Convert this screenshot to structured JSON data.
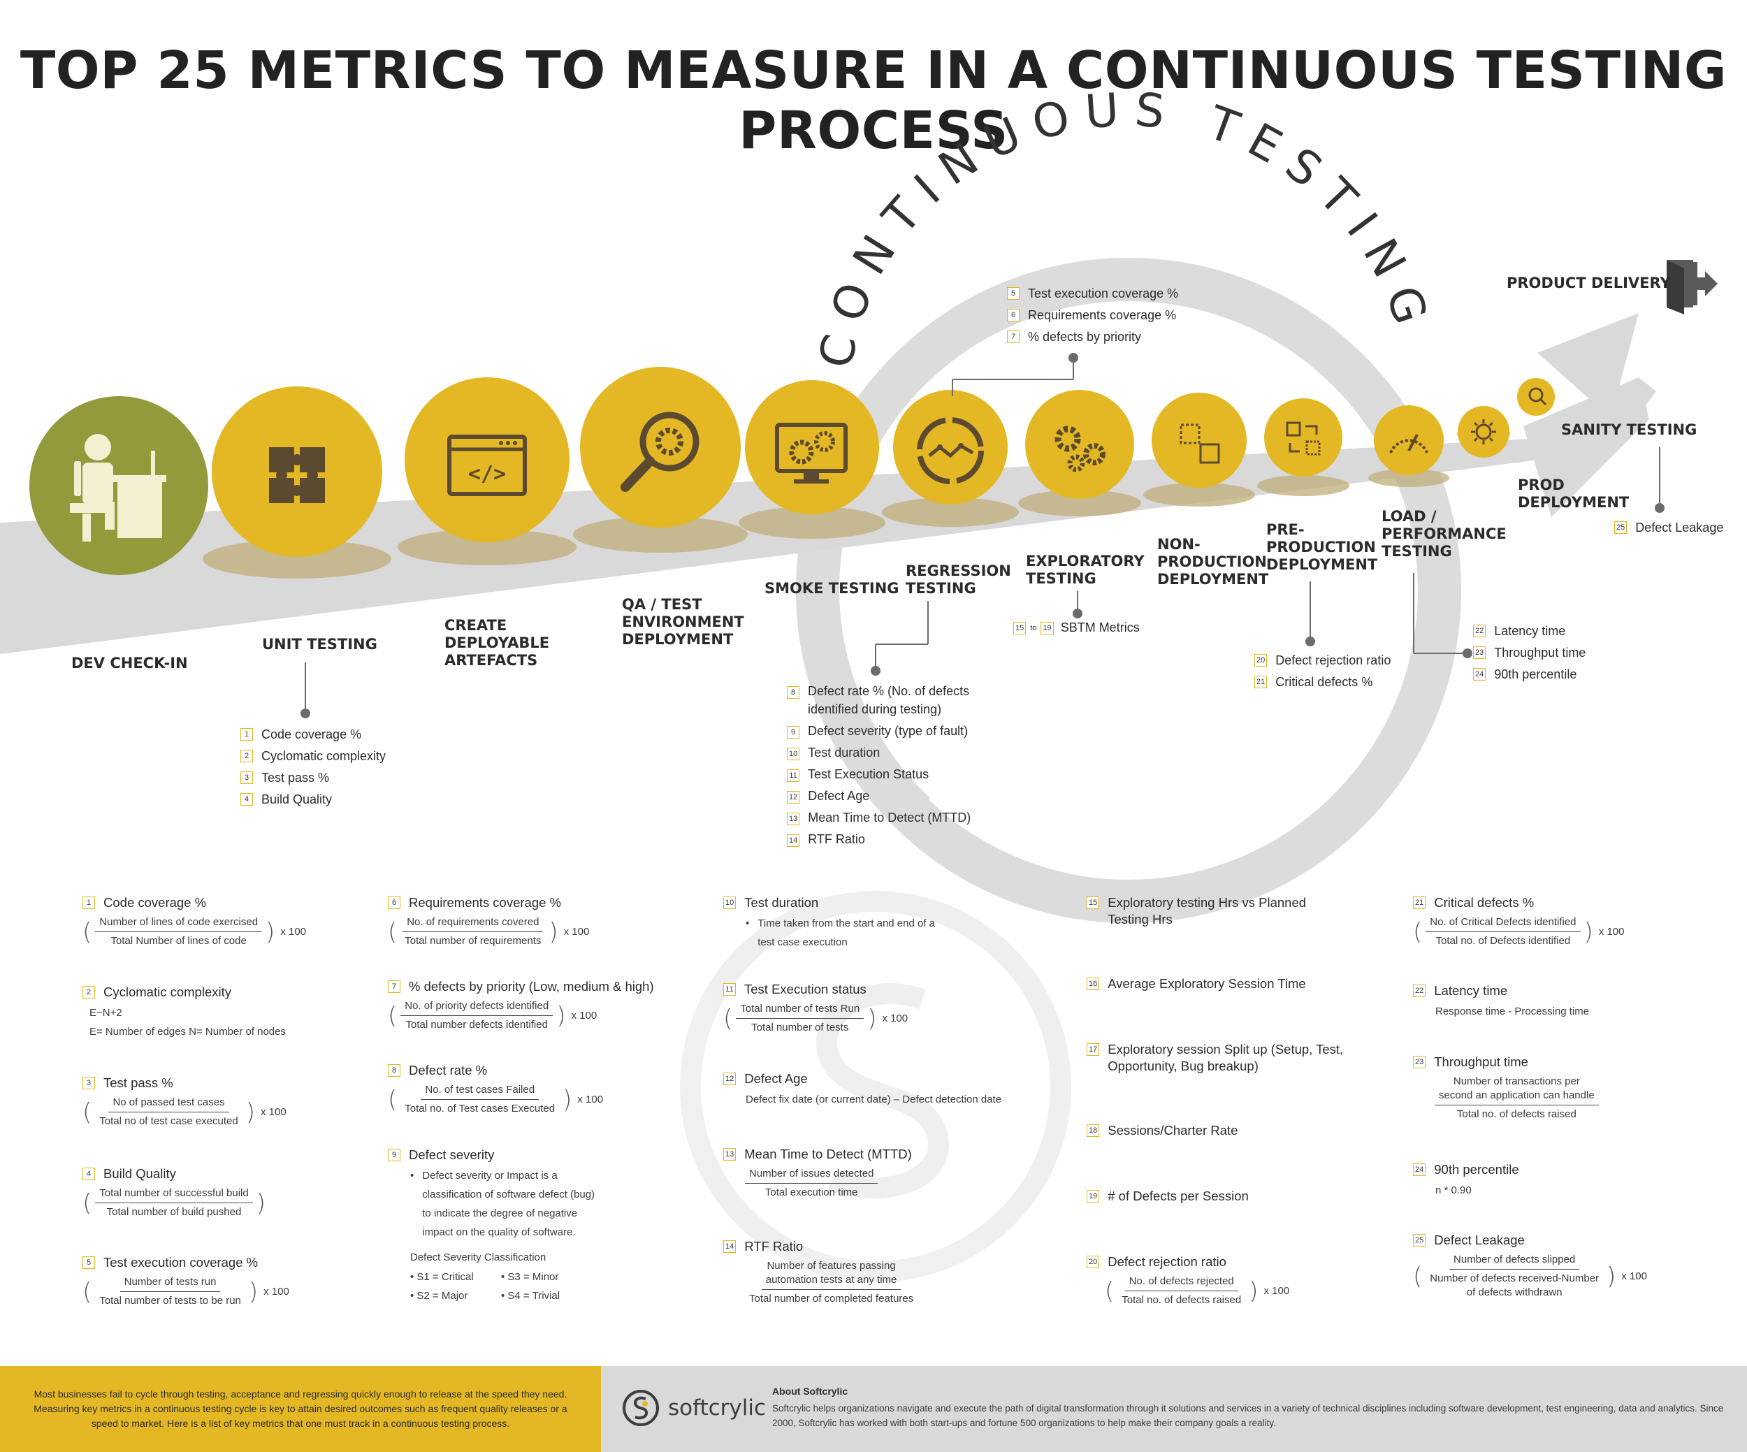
{
  "title": "TOP 25 METRICS TO MEASURE IN A CONTINUOUS TESTING PROCESS",
  "colors": {
    "yellow": "#e4b824",
    "olive": "#949a3c",
    "gray_road": "#d9d9da",
    "dark_icon": "#5b4a2f"
  },
  "arc_text": "CONTINUOUS TESTING",
  "product_delivery": "PRODUCT DELIVERY",
  "stages": {
    "dev_checkin": {
      "label": "DEV CHECK-IN",
      "icon": "developer-at-desk-icon"
    },
    "unit_testing": {
      "label": "UNIT TESTING",
      "icon": "puzzle-icon"
    },
    "create_artefacts": {
      "label": "CREATE\nDEPLOYABLE\nARTEFACTS",
      "icon": "code-window-icon"
    },
    "qa_env": {
      "label": "QA / TEST\nENVIRONMENT\nDEPLOYMENT",
      "icon": "magnifier-gear-icon"
    },
    "smoke": {
      "label": "SMOKE TESTING",
      "icon": "monitor-gears-icon"
    },
    "regression": {
      "label": "REGRESSION\nTESTING",
      "icon": "regression-cycle-icon"
    },
    "exploratory": {
      "label": "EXPLORATORY\nTESTING",
      "icon": "gears-icon"
    },
    "nonprod": {
      "label": "NON-\nPRODUCTION\nDEPLOYMENT",
      "icon": "dashed-squares-icon"
    },
    "preprod": {
      "label": "PRE-\nPRODUCTION\nDEPLOYMENT",
      "icon": "swap-squares-icon"
    },
    "load": {
      "label": "LOAD /\nPERFORMANCE\nTESTING",
      "icon": "speedometer-icon"
    },
    "prod": {
      "label": "PROD\nDEPLOYMENT",
      "icon": "deployment-network-icon"
    },
    "sanity": {
      "label": "SANITY TESTING",
      "icon": "search-icon"
    }
  },
  "lists": {
    "unit": [
      {
        "n": "1",
        "t": "Code coverage %"
      },
      {
        "n": "2",
        "t": "Cyclomatic complexity"
      },
      {
        "n": "3",
        "t": "Test pass %"
      },
      {
        "n": "4",
        "t": "Build Quality"
      }
    ],
    "smoke": [
      {
        "n": "5",
        "t": "Test execution coverage %"
      },
      {
        "n": "6",
        "t": "Requirements coverage %"
      },
      {
        "n": "7",
        "t": "% defects by priority"
      }
    ],
    "regression": [
      {
        "n": "8",
        "t": "Defect rate % (No. of defects\nidentified during testing)"
      },
      {
        "n": "9",
        "t": "Defect severity (type of fault)"
      },
      {
        "n": "10",
        "t": "Test duration"
      },
      {
        "n": "11",
        "t": "Test Execution Status"
      },
      {
        "n": "12",
        "t": "Defect Age"
      },
      {
        "n": "13",
        "t": "Mean Time to Detect (MTTD)"
      },
      {
        "n": "14",
        "t": "RTF Ratio"
      }
    ],
    "exploratory_range": {
      "from": "15",
      "to_word": "to",
      "to": "19",
      "t": "SBTM Metrics"
    },
    "preprod": [
      {
        "n": "20",
        "t": "Defect rejection ratio"
      },
      {
        "n": "21",
        "t": "Critical defects %"
      }
    ],
    "load": [
      {
        "n": "22",
        "t": "Latency time"
      },
      {
        "n": "23",
        "t": "Throughput time"
      },
      {
        "n": "24",
        "t": "90th percentile"
      }
    ],
    "sanity": [
      {
        "n": "25",
        "t": "Defect Leakage"
      }
    ]
  },
  "defs": {
    "d1": {
      "n": "1",
      "h": "Code coverage %",
      "num": "Number of lines of code exercised",
      "den": "Total Number of lines of code",
      "x": "x 100"
    },
    "d2": {
      "n": "2",
      "h": "Cyclomatic complexity",
      "l1": "E−N+2",
      "l2": "E= Number of edges    N= Number of nodes"
    },
    "d3": {
      "n": "3",
      "h": "Test pass  %",
      "num": "No of passed test cases",
      "den": "Total no of test case executed",
      "x": "x 100"
    },
    "d4": {
      "n": "4",
      "h": "Build Quality",
      "num": "Total number of successful build",
      "den": "Total number of build pushed"
    },
    "d5": {
      "n": "5",
      "h": "Test execution coverage %",
      "num": "Number of tests run",
      "den": "Total number of tests to be run",
      "x": "x 100"
    },
    "d6": {
      "n": "6",
      "h": "Requirements coverage %",
      "num": "No. of requirements covered",
      "den": "Total number of requirements",
      "x": "x 100"
    },
    "d7": {
      "n": "7",
      "h": "% defects by priority (Low, medium & high)",
      "num": "No. of priority defects identified",
      "den": "Total number defects identified",
      "x": "x 100"
    },
    "d8": {
      "n": "8",
      "h": "Defect rate %",
      "num": "No. of test cases Failed",
      "den": "Total no. of Test cases Executed",
      "x": "x 100"
    },
    "d9": {
      "n": "9",
      "h": "Defect severity",
      "b": "Defect severity or Impact is a\nclassification of software defect (bug)\nto indicate the degree of negative\nimpact on the quality of software.",
      "sev_title": "Defect Severity Classification",
      "s1": "S1 = Critical",
      "s3": "S3 = Minor",
      "s2": "S2 = Major",
      "s4": "S4 = Trivial"
    },
    "d10": {
      "n": "10",
      "h": "Test duration",
      "b": "Time taken from the start and end of a\ntest case execution"
    },
    "d11": {
      "n": "11",
      "h": "Test Execution status",
      "num": "Total number of tests Run",
      "den": "Total number of tests",
      "x": "x 100"
    },
    "d12": {
      "n": "12",
      "h": "Defect Age",
      "l1": "Defect fix date (or current date) – Defect detection date"
    },
    "d13": {
      "n": "13",
      "h": "Mean Time to Detect (MTTD)",
      "num": "Number of issues detected",
      "den": "Total execution time"
    },
    "d14": {
      "n": "14",
      "h": "RTF Ratio",
      "num": "Number of features passing\nautomation tests at any time",
      "den": "Total number of completed features"
    },
    "d15": {
      "n": "15",
      "h": "Exploratory testing Hrs vs Planned\nTesting Hrs"
    },
    "d16": {
      "n": "16",
      "h": "Average Exploratory Session Time"
    },
    "d17": {
      "n": "17",
      "h": "Exploratory session Split up (Setup, Test,\nOpportunity, Bug breakup)"
    },
    "d18": {
      "n": "18",
      "h": "Sessions/Charter Rate"
    },
    "d19": {
      "n": "19",
      "h": "# of Defects per Session"
    },
    "d20": {
      "n": "20",
      "h": "Defect rejection ratio",
      "num": "No. of defects rejected",
      "den": "Total no. of defects raised",
      "x": "x 100"
    },
    "d21": {
      "n": "21",
      "h": "Critical defects %",
      "num": "No. of Critical Defects identified",
      "den": "Total no. of Defects identified",
      "x": "x 100"
    },
    "d22": {
      "n": "22",
      "h": "Latency time",
      "l1": "Response time - Processing time"
    },
    "d23": {
      "n": "23",
      "h": "Throughput time",
      "num": "Number of transactions per\nsecond an application can handle",
      "den": "Total no. of defects raised"
    },
    "d24": {
      "n": "24",
      "h": "90th percentile",
      "l1": "n * 0.90"
    },
    "d25": {
      "n": "25",
      "h": "Defect Leakage",
      "num": "Number of defects slipped",
      "den": "Number of defects received-Number\nof defects withdrawn",
      "x": "x 100"
    }
  },
  "footer": {
    "intro": "Most businesses fail to cycle through testing, acceptance and regressing quickly enough to release at the speed they need. Measuring key metrics in a continuous testing cycle is key to attain desired outcomes such as frequent quality releases or a speed to market. Here is a list of key metrics that one must track in a continuous testing process.",
    "brand": "softcrylic",
    "about_title": "About Softcrylic",
    "about_text": "Softcrylic helps organizations navigate and execute the path of digital transformation through it solutions and services in a variety of technical disciplines including software development, test engineering, data and analytics. Since 2000, Softcrylic has worked with both start-ups and fortune 500 organizations to help make their company goals a reality."
  }
}
